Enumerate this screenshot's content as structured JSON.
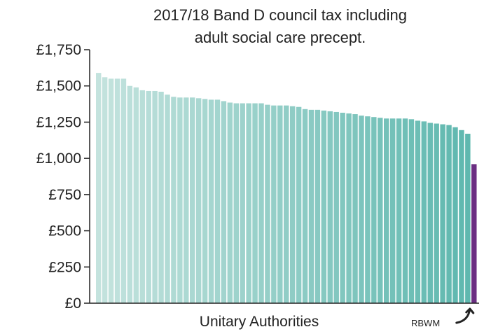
{
  "chart_data": {
    "type": "bar",
    "title_lines": [
      "2017/18 Band D council tax including",
      "adult social care precept."
    ],
    "xlabel": "Unitary Authorities",
    "ylabel": "",
    "ylim": [
      0,
      1750
    ],
    "yticks": [
      0,
      250,
      500,
      750,
      1000,
      1250,
      1500,
      1750
    ],
    "ytick_labels": [
      "£0",
      "£250",
      "£500",
      "£750",
      "£1,000",
      "£1,250",
      "£1,500",
      "£1,750"
    ],
    "values": [
      1590,
      1560,
      1550,
      1550,
      1550,
      1500,
      1490,
      1470,
      1465,
      1465,
      1460,
      1440,
      1425,
      1420,
      1420,
      1420,
      1415,
      1410,
      1405,
      1405,
      1395,
      1385,
      1380,
      1380,
      1380,
      1380,
      1380,
      1370,
      1365,
      1365,
      1365,
      1360,
      1355,
      1340,
      1335,
      1335,
      1330,
      1325,
      1320,
      1315,
      1310,
      1305,
      1295,
      1290,
      1285,
      1280,
      1275,
      1275,
      1275,
      1275,
      1270,
      1260,
      1255,
      1245,
      1240,
      1235,
      1230,
      1215,
      1195,
      1170,
      960
    ],
    "highlight_index": 60,
    "annotation": "RBWM",
    "colors": {
      "gradient_start": "#c4e3de",
      "gradient_end": "#5fb8af",
      "highlight": "#6b2e82",
      "axis": "#222222"
    },
    "grid": false
  }
}
